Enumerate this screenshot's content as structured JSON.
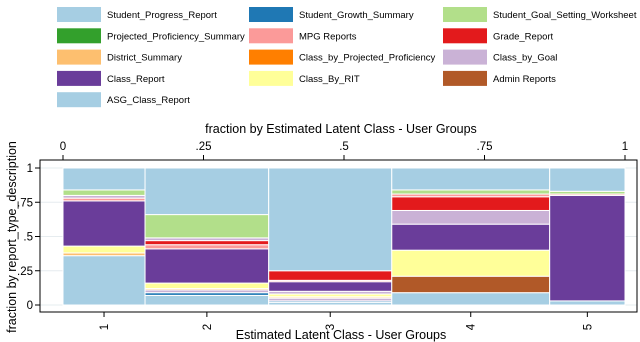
{
  "chart_data": {
    "type": "mosaic",
    "title": "fraction by Estimated Latent Class - User Groups",
    "xlabel": "Estimated Latent Class - User Groups",
    "ylabel": "fraction by report_type_description",
    "xlim": [
      0,
      1
    ],
    "ylim": [
      0,
      1
    ],
    "x_ticks": [
      {
        "value": 0,
        "label": "0"
      },
      {
        "value": 0.25,
        "label": ".25"
      },
      {
        "value": 0.5,
        "label": ".5"
      },
      {
        "value": 0.75,
        "label": ".75"
      },
      {
        "value": 1,
        "label": "1"
      }
    ],
    "y_ticks": [
      {
        "value": 0,
        "label": "0"
      },
      {
        "value": 0.25,
        "label": ".25"
      },
      {
        "value": 0.5,
        "label": ".5"
      },
      {
        "value": 0.75,
        "label": ".75"
      },
      {
        "value": 1,
        "label": "1"
      }
    ],
    "grid": true,
    "legend_position": "top",
    "legend": [
      {
        "name": "Student_Progress_Report",
        "color": "#a6cee3"
      },
      {
        "name": "Student_Growth_Summary",
        "color": "#1f78b4"
      },
      {
        "name": "Student_Goal_Setting_Worksheet",
        "color": "#b2df8a"
      },
      {
        "name": "Projected_Proficiency_Summary",
        "color": "#33a02c"
      },
      {
        "name": "MPG Reports",
        "color": "#fb9a99"
      },
      {
        "name": "Grade_Report",
        "color": "#e31a1c"
      },
      {
        "name": "District_Summary",
        "color": "#fdbf6f"
      },
      {
        "name": "Class_by_Projected_Proficiency",
        "color": "#ff7f00"
      },
      {
        "name": "Class_by_Goal",
        "color": "#cab2d6"
      },
      {
        "name": "Class_Report",
        "color": "#6a3d9a"
      },
      {
        "name": "Class_By_RIT",
        "color": "#ffff99"
      },
      {
        "name": "Admin Reports",
        "color": "#b15928"
      },
      {
        "name": "ASG_Class_Report",
        "color": "#a6cee3"
      }
    ],
    "columns": [
      {
        "label": "1",
        "x0": 0,
        "x1": 0.146,
        "segments": [
          {
            "name": "Student_Progress_Report",
            "value": 0.36
          },
          {
            "name": "District_Summary",
            "value": 0.02
          },
          {
            "name": "Class_By_RIT",
            "value": 0.05
          },
          {
            "name": "Class_Report",
            "value": 0.33
          },
          {
            "name": "MPG Reports",
            "value": 0.02
          },
          {
            "name": "Class_by_Goal",
            "value": 0.02
          },
          {
            "name": "Student_Goal_Setting_Worksheet",
            "value": 0.04
          },
          {
            "name": "ASG_Class_Report",
            "value": 0.16
          }
        ]
      },
      {
        "label": "2",
        "x0": 0.146,
        "x1": 0.366,
        "segments": [
          {
            "name": "Student_Progress_Report",
            "value": 0.07
          },
          {
            "name": "Student_Growth_Summary",
            "value": 0.02
          },
          {
            "name": "Class_by_Goal",
            "value": 0.02
          },
          {
            "name": "District_Summary",
            "value": 0.01
          },
          {
            "name": "Class_By_RIT",
            "value": 0.04
          },
          {
            "name": "Class_Report",
            "value": 0.25
          },
          {
            "name": "MPG Reports",
            "value": 0.03
          },
          {
            "name": "Grade_Report",
            "value": 0.03
          },
          {
            "name": "Class_by_Goal",
            "value": 0.02
          },
          {
            "name": "Student_Goal_Setting_Worksheet",
            "value": 0.17
          },
          {
            "name": "ASG_Class_Report",
            "value": 0.34
          }
        ]
      },
      {
        "label": "3",
        "x0": 0.366,
        "x1": 0.585,
        "segments": [
          {
            "name": "Student_Progress_Report",
            "value": 0.02
          },
          {
            "name": "Student_Growth_Summary",
            "value": 0.01
          },
          {
            "name": "Class_by_Goal",
            "value": 0.02
          },
          {
            "name": "District_Summary",
            "value": 0.01
          },
          {
            "name": "Class_By_RIT",
            "value": 0.02
          },
          {
            "name": "Class_by_Goal",
            "value": 0.02
          },
          {
            "name": "Class_Report",
            "value": 0.07
          },
          {
            "name": "MPG Reports",
            "value": 0.01
          },
          {
            "name": "Grade_Report",
            "value": 0.07
          },
          {
            "name": "ASG_Class_Report",
            "value": 0.75
          }
        ]
      },
      {
        "label": "4",
        "x0": 0.585,
        "x1": 0.866,
        "segments": [
          {
            "name": "Student_Progress_Report",
            "value": 0.09
          },
          {
            "name": "Admin Reports",
            "value": 0.12
          },
          {
            "name": "Class_By_RIT",
            "value": 0.19
          },
          {
            "name": "Class_Report",
            "value": 0.19
          },
          {
            "name": "Class_by_Goal",
            "value": 0.1
          },
          {
            "name": "Grade_Report",
            "value": 0.1
          },
          {
            "name": "MPG Reports",
            "value": 0.02
          },
          {
            "name": "Student_Goal_Setting_Worksheet",
            "value": 0.03
          },
          {
            "name": "ASG_Class_Report",
            "value": 0.16
          }
        ]
      },
      {
        "label": "5",
        "x0": 0.866,
        "x1": 1,
        "segments": [
          {
            "name": "Student_Progress_Report",
            "value": 0.03
          },
          {
            "name": "Class_Report",
            "value": 0.77
          },
          {
            "name": "MPG Reports",
            "value": 0.01
          },
          {
            "name": "Student_Goal_Setting_Worksheet",
            "value": 0.02
          },
          {
            "name": "ASG_Class_Report",
            "value": 0.17
          }
        ]
      }
    ]
  }
}
